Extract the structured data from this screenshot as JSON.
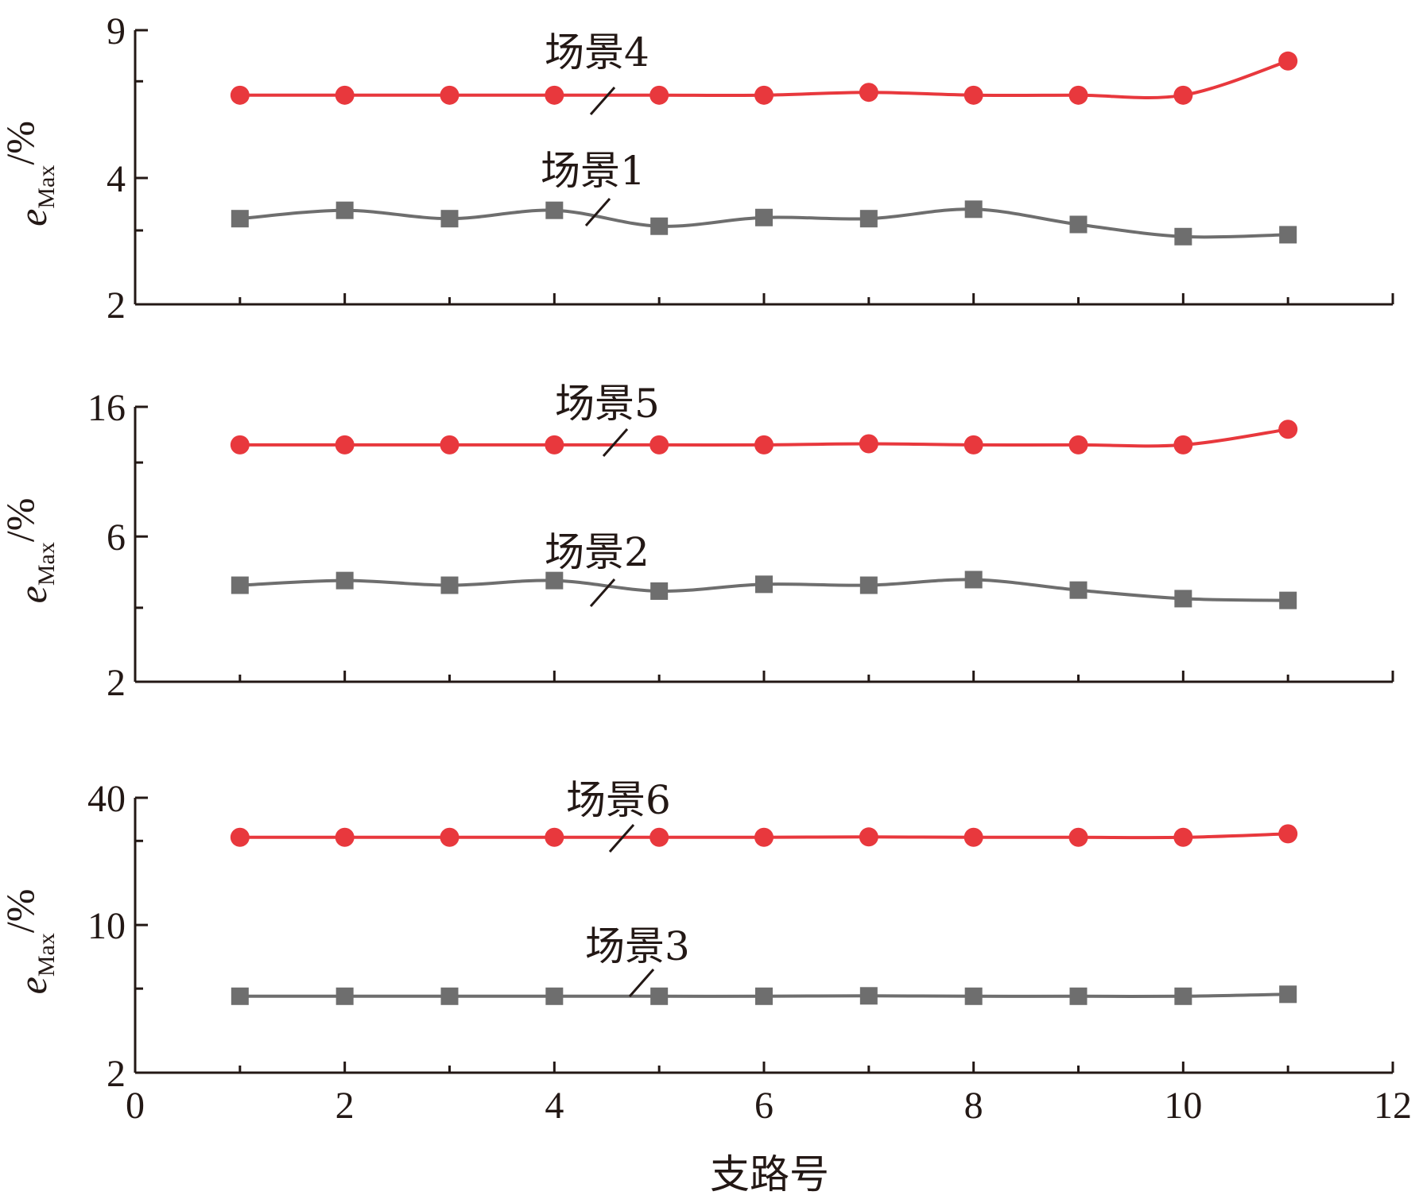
{
  "colors": {
    "axis": "#231815",
    "red": "#e8383d",
    "gray": "#6e6e6e"
  },
  "chart_data": [
    {
      "type": "line",
      "scale": "log",
      "x": [
        1,
        2,
        3,
        4,
        5,
        6,
        7,
        8,
        9,
        10,
        11
      ],
      "xlim": [
        0,
        12
      ],
      "ylim": [
        2,
        9
      ],
      "yticks": [
        {
          "value": 9,
          "label": "9"
        },
        {
          "value": 4,
          "label": "4"
        },
        {
          "value": 2,
          "label": "2"
        }
      ],
      "ylabel": {
        "main": "e",
        "sub": "Max",
        "unit": "/%"
      },
      "series": [
        {
          "name": "场景4",
          "color": "red",
          "marker": "circle",
          "values": [
            6.3,
            6.3,
            6.3,
            6.3,
            6.3,
            6.3,
            6.4,
            6.3,
            6.3,
            6.3,
            7.6
          ]
        },
        {
          "name": "场景1",
          "color": "gray",
          "marker": "square",
          "values": [
            3.2,
            3.35,
            3.2,
            3.35,
            3.07,
            3.22,
            3.2,
            3.37,
            3.1,
            2.9,
            2.93
          ]
        }
      ]
    },
    {
      "type": "line",
      "scale": "log",
      "x": [
        1,
        2,
        3,
        4,
        5,
        6,
        7,
        8,
        9,
        10,
        11
      ],
      "xlim": [
        0,
        12
      ],
      "ylim": [
        2,
        16
      ],
      "yticks": [
        {
          "value": 16,
          "label": "16"
        },
        {
          "value": 6,
          "label": "6"
        },
        {
          "value": 2,
          "label": "2"
        }
      ],
      "ylabel": {
        "main": "e",
        "sub": "Max",
        "unit": "/%"
      },
      "series": [
        {
          "name": "场景5",
          "color": "red",
          "marker": "circle",
          "values": [
            12.0,
            12.0,
            12.0,
            12.0,
            12.0,
            12.0,
            12.1,
            12.0,
            12.0,
            12.0,
            13.5
          ]
        },
        {
          "name": "场景2",
          "color": "gray",
          "marker": "square",
          "values": [
            4.15,
            4.3,
            4.15,
            4.3,
            3.97,
            4.18,
            4.15,
            4.33,
            4.0,
            3.75,
            3.7
          ]
        }
      ]
    },
    {
      "type": "line",
      "scale": "log",
      "x": [
        1,
        2,
        3,
        4,
        5,
        6,
        7,
        8,
        9,
        10,
        11
      ],
      "xlim": [
        0,
        12
      ],
      "ylim": [
        2,
        40
      ],
      "xticks": [
        0,
        2,
        4,
        6,
        8,
        10,
        12
      ],
      "xlabel": "支路号",
      "yticks": [
        {
          "value": 40,
          "label": "40"
        },
        {
          "value": 10,
          "label": "10"
        },
        {
          "value": 2,
          "label": "2"
        }
      ],
      "ylabel": {
        "main": "e",
        "sub": "Max",
        "unit": "/%"
      },
      "series": [
        {
          "name": "场景6",
          "color": "red",
          "marker": "circle",
          "values": [
            26.0,
            26.0,
            26.0,
            26.0,
            26.0,
            26.0,
            26.1,
            26.0,
            26.0,
            26.0,
            27.0
          ]
        },
        {
          "name": "场景3",
          "color": "gray",
          "marker": "square",
          "values": [
            4.6,
            4.6,
            4.6,
            4.6,
            4.6,
            4.6,
            4.62,
            4.6,
            4.6,
            4.6,
            4.7
          ]
        }
      ]
    }
  ]
}
